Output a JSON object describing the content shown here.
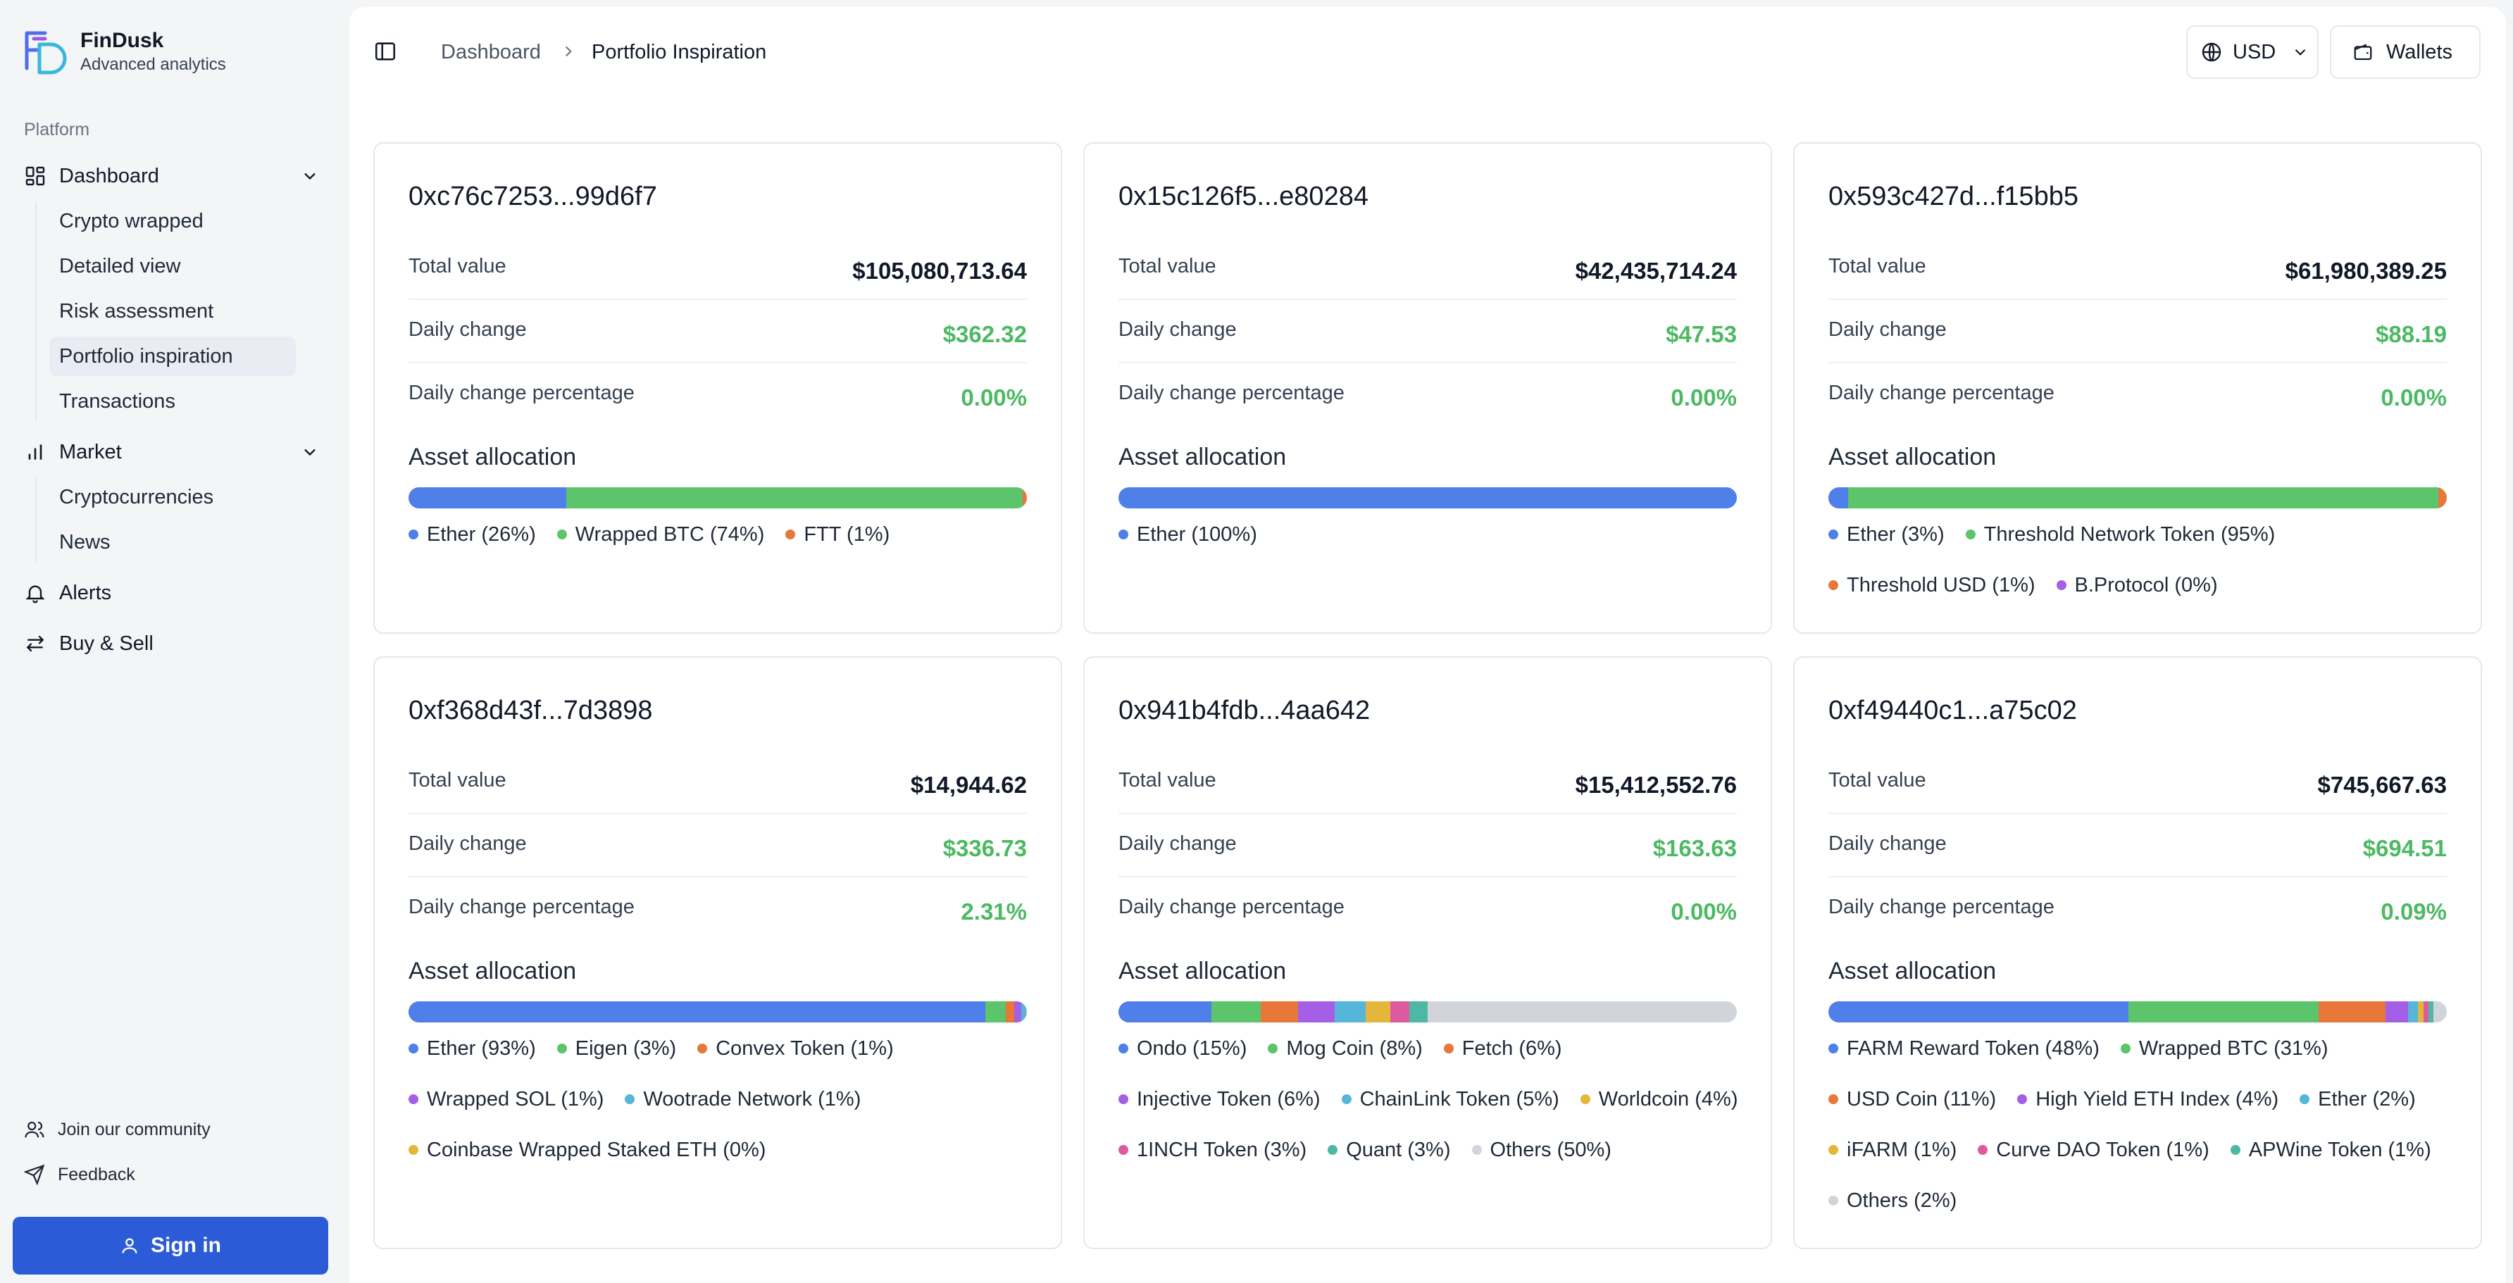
{
  "brand": {
    "name": "FinDusk",
    "tagline": "Advanced analytics"
  },
  "sidebar": {
    "section_label": "Platform",
    "dashboard": {
      "label": "Dashboard",
      "children": [
        "Crypto wrapped",
        "Detailed view",
        "Risk assessment",
        "Portfolio inspiration",
        "Transactions"
      ]
    },
    "market": {
      "label": "Market",
      "children": [
        "Cryptocurrencies",
        "News"
      ]
    },
    "alerts_label": "Alerts",
    "buy_sell_label": "Buy & Sell",
    "community_label": "Join our community",
    "feedback_label": "Feedback",
    "signin_label": "Sign in"
  },
  "header": {
    "breadcrumb_home": "Dashboard",
    "breadcrumb_current": "Portfolio Inspiration",
    "currency_label": "USD",
    "wallets_label": "Wallets"
  },
  "labels": {
    "total_value": "Total value",
    "daily_change": "Daily change",
    "daily_change_pct": "Daily change percentage",
    "asset_allocation": "Asset allocation"
  },
  "colors": {
    "blue": "#4f7fe8",
    "green": "#5cc46a",
    "orange": "#e8773a",
    "purple": "#a55ee6",
    "cyan": "#55b6d9",
    "yellow": "#e4b63c",
    "pink": "#de5aa0",
    "teal": "#4db8a4",
    "gray": "#d1d5db",
    "accent": "#2b5bd7",
    "positive": "#4cb963"
  },
  "cards": [
    {
      "address": "0xc76c7253...99d6f7",
      "total_value": "$105,080,713.64",
      "daily_change": "$362.32",
      "daily_change_pct": "0.00%",
      "allocation": [
        {
          "label": "Ether (26%)",
          "pct": 25.5,
          "color": "blue"
        },
        {
          "label": "Wrapped BTC (74%)",
          "pct": 73.8,
          "color": "green"
        },
        {
          "label": "FTT (1%)",
          "pct": 0.7,
          "color": "orange"
        }
      ]
    },
    {
      "address": "0x15c126f5...e80284",
      "total_value": "$42,435,714.24",
      "daily_change": "$47.53",
      "daily_change_pct": "0.00%",
      "allocation": [
        {
          "label": "Ether (100%)",
          "pct": 100,
          "color": "blue"
        }
      ]
    },
    {
      "address": "0x593c427d...f15bb5",
      "total_value": "$61,980,389.25",
      "daily_change": "$88.19",
      "daily_change_pct": "0.00%",
      "allocation": [
        {
          "label": "Ether (3%)",
          "pct": 3.2,
          "color": "blue"
        },
        {
          "label": "Threshold Network Token (95%)",
          "pct": 95.4,
          "color": "green"
        },
        {
          "label": "Threshold USD (1%)",
          "pct": 1.4,
          "color": "orange"
        },
        {
          "label": "B.Protocol (0%)",
          "pct": 0,
          "color": "purple"
        }
      ]
    },
    {
      "address": "0xf368d43f...7d3898",
      "total_value": "$14,944.62",
      "daily_change": "$336.73",
      "daily_change_pct": "2.31%",
      "allocation": [
        {
          "label": "Ether (93%)",
          "pct": 93.3,
          "color": "blue"
        },
        {
          "label": "Eigen (3%)",
          "pct": 3.3,
          "color": "green"
        },
        {
          "label": "Convex Token (1%)",
          "pct": 1.3,
          "color": "orange"
        },
        {
          "label": "Wrapped SOL (1%)",
          "pct": 1.2,
          "color": "purple"
        },
        {
          "label": "Wootrade Network (1%)",
          "pct": 0.8,
          "color": "cyan"
        },
        {
          "label": "Coinbase Wrapped Staked ETH (0%)",
          "pct": 0.1,
          "color": "yellow"
        }
      ]
    },
    {
      "address": "0x941b4fdb...4aa642",
      "total_value": "$15,412,552.76",
      "daily_change": "$163.63",
      "daily_change_pct": "0.00%",
      "allocation": [
        {
          "label": "Ondo (15%)",
          "pct": 15,
          "color": "blue"
        },
        {
          "label": "Mog Coin (8%)",
          "pct": 8,
          "color": "green"
        },
        {
          "label": "Fetch (6%)",
          "pct": 6,
          "color": "orange"
        },
        {
          "label": "Injective Token (6%)",
          "pct": 6,
          "color": "purple"
        },
        {
          "label": "ChainLink Token (5%)",
          "pct": 5,
          "color": "cyan"
        },
        {
          "label": "Worldcoin (4%)",
          "pct": 4,
          "color": "yellow"
        },
        {
          "label": "1INCH Token (3%)",
          "pct": 3,
          "color": "pink"
        },
        {
          "label": "Quant (3%)",
          "pct": 3,
          "color": "teal"
        },
        {
          "label": "Others (50%)",
          "pct": 50,
          "color": "gray"
        }
      ]
    },
    {
      "address": "0xf49440c1...a75c02",
      "total_value": "$745,667.63",
      "daily_change": "$694.51",
      "daily_change_pct": "0.09%",
      "allocation": [
        {
          "label": "FARM Reward Token (48%)",
          "pct": 48.5,
          "color": "blue"
        },
        {
          "label": "Wrapped BTC (31%)",
          "pct": 30.8,
          "color": "green"
        },
        {
          "label": "USD Coin (11%)",
          "pct": 10.8,
          "color": "orange"
        },
        {
          "label": "High Yield ETH Index (4%)",
          "pct": 3.6,
          "color": "purple"
        },
        {
          "label": "Ether (2%)",
          "pct": 1.6,
          "color": "cyan"
        },
        {
          "label": "iFARM (1%)",
          "pct": 0.9,
          "color": "yellow"
        },
        {
          "label": "Curve DAO Token (1%)",
          "pct": 0.8,
          "color": "pink"
        },
        {
          "label": "APWine Token (1%)",
          "pct": 0.8,
          "color": "teal"
        },
        {
          "label": "Others (2%)",
          "pct": 2.2,
          "color": "gray"
        }
      ]
    }
  ]
}
